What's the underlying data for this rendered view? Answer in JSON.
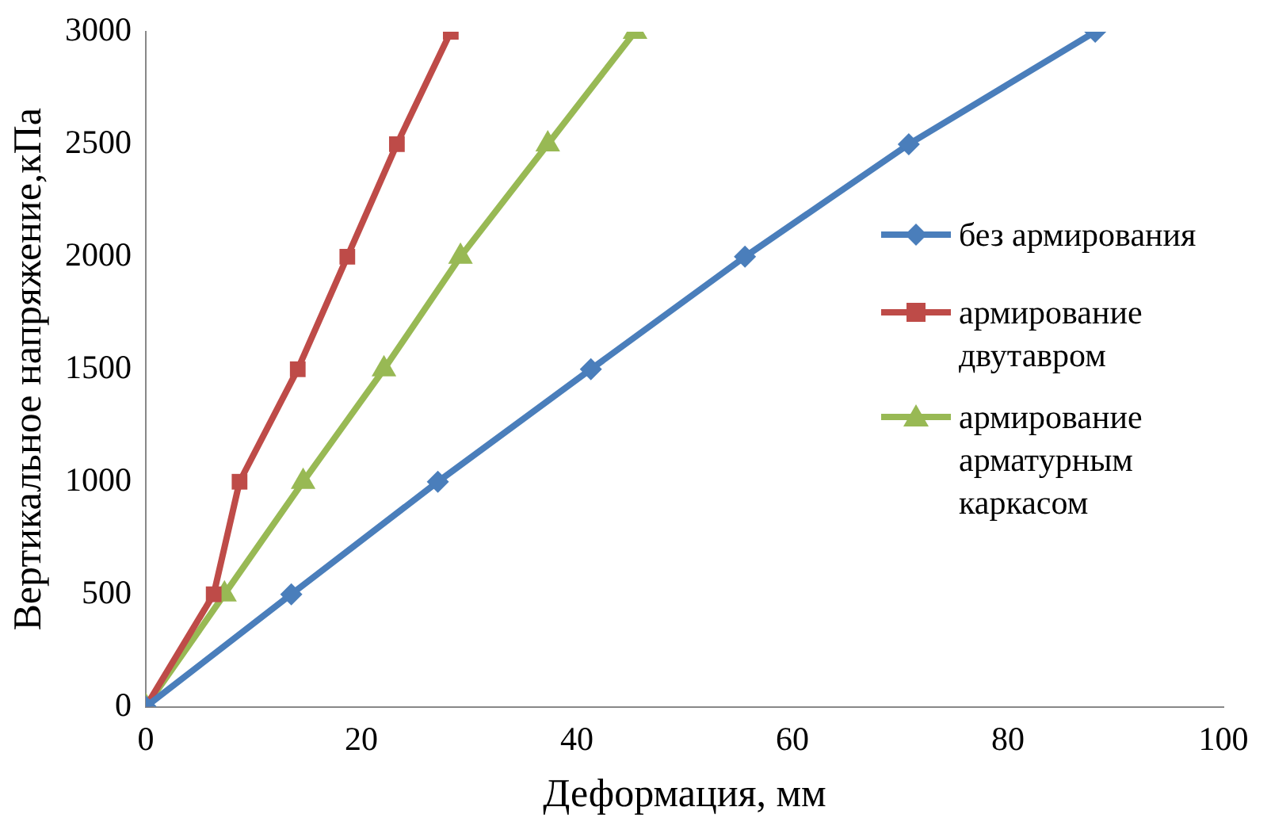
{
  "chart_data": {
    "type": "line",
    "xlabel": "Деформация, мм",
    "ylabel": "Вертикальное напряжение,кПа",
    "xlim": [
      0,
      100
    ],
    "xticks": [
      0,
      20,
      40,
      60,
      80,
      100
    ],
    "ylim": [
      0,
      3000
    ],
    "yticks": [
      0,
      500,
      1000,
      1500,
      2000,
      2500,
      3000
    ],
    "grid": false,
    "legend": "right",
    "line_style": "solid",
    "series": [
      {
        "name": "без армирования",
        "color": "#4a7ebb",
        "marker": "diamond",
        "x": [
          0,
          13.5,
          27.1,
          41.3,
          55.6,
          70.8,
          88.1
        ],
        "values": [
          0,
          500,
          1000,
          1500,
          2000,
          2500,
          3000
        ]
      },
      {
        "name": "армирование двутавром",
        "color": "#be4b48",
        "marker": "square",
        "x": [
          0,
          6.3,
          8.7,
          14.1,
          18.7,
          23.3,
          28.3
        ],
        "values": [
          0,
          500,
          1000,
          1500,
          2000,
          2500,
          3000
        ]
      },
      {
        "name": "армирование арматурным каркасом",
        "color": "#98b954",
        "marker": "triangle",
        "x": [
          0,
          7.3,
          14.6,
          22.1,
          29.2,
          37.3,
          45.4
        ],
        "values": [
          0,
          500,
          1000,
          1500,
          2000,
          2500,
          3000
        ]
      }
    ]
  }
}
